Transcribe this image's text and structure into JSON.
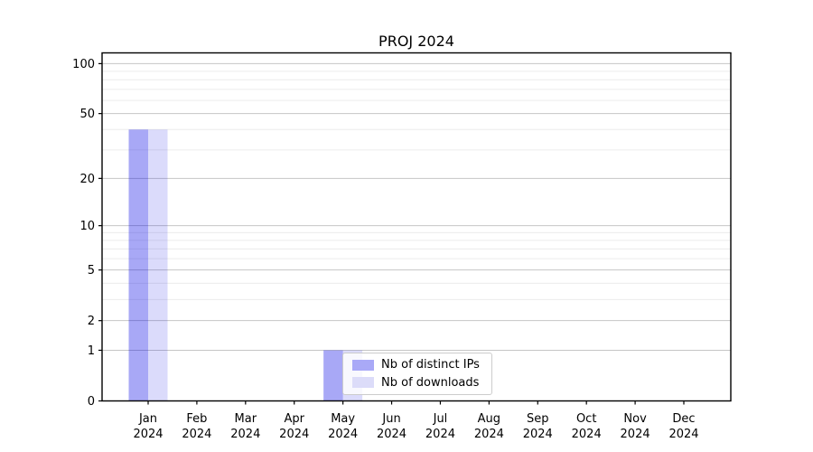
{
  "figure": {
    "background": "#ffffff"
  },
  "chart_data": {
    "type": "bar",
    "title": "PROJ 2024",
    "categories": [
      "Jan",
      "Feb",
      "Mar",
      "Apr",
      "May",
      "Jun",
      "Jul",
      "Aug",
      "Sep",
      "Oct",
      "Nov",
      "Dec"
    ],
    "category_year": "2024",
    "series": [
      {
        "name": "Nb of distinct IPs",
        "swatch_color": "#a9a9f7",
        "fill_rgba": "rgba(0,0,230,0.34)",
        "values": [
          40,
          0,
          0,
          0,
          1,
          0,
          0,
          0,
          0,
          0,
          0,
          0
        ]
      },
      {
        "name": "Nb of downloads",
        "swatch_color": "#dcdcf9",
        "fill_rgba": "rgba(0,0,230,0.14)",
        "values": [
          40,
          0,
          0,
          0,
          1,
          0,
          0,
          0,
          0,
          0,
          0,
          0
        ]
      }
    ],
    "yscale": "log1p",
    "ylim": [
      0,
      116
    ],
    "yticks_major": [
      0,
      1,
      2,
      5,
      10,
      20,
      50,
      100
    ],
    "yticks_minor": [
      3,
      4,
      6,
      7,
      8,
      9,
      30,
      40,
      60,
      70,
      80,
      90
    ],
    "grid": true,
    "legend_position": "inside-bottom-center",
    "colors": {
      "axis": "#000000",
      "tick_label": "#000000",
      "grid_major": "#c6c6c6",
      "grid_minor": "#ececec"
    }
  }
}
